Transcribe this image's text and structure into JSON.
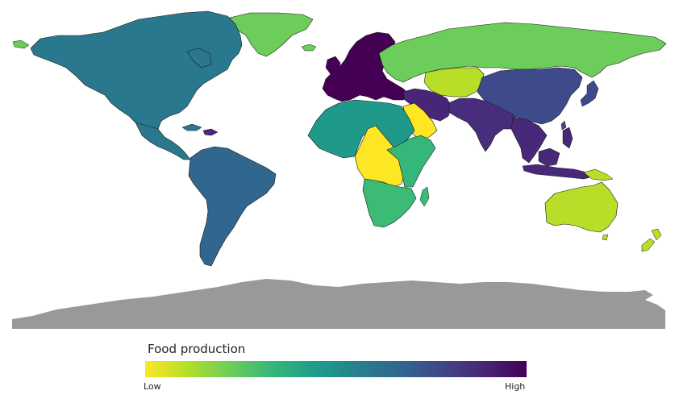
{
  "legend": {
    "title": "Food production",
    "low_label": "Low",
    "high_label": "High",
    "colorscale": [
      "#fde725",
      "#b5de2b",
      "#6ece58",
      "#35b779",
      "#1f9e89",
      "#26828e",
      "#31688e",
      "#3e4989",
      "#482878",
      "#440154"
    ]
  },
  "regions": [
    {
      "name": "North America",
      "color": "#2a788e"
    },
    {
      "name": "Central America and Caribbean",
      "color": "#2a788e"
    },
    {
      "name": "South America",
      "color": "#31668e"
    },
    {
      "name": "Western and Northern Europe",
      "color": "#440154"
    },
    {
      "name": "Russia",
      "color": "#6ccd5a"
    },
    {
      "name": "Central Asia",
      "color": "#b8de29"
    },
    {
      "name": "China and East Asia",
      "color": "#3e4a89"
    },
    {
      "name": "Middle East",
      "color": "#482677"
    },
    {
      "name": "South Asia",
      "color": "#472d7b"
    },
    {
      "name": "Southeast Asia",
      "color": "#482878"
    },
    {
      "name": "Arabian Peninsula",
      "color": "#fde725"
    },
    {
      "name": "North Africa",
      "color": "#1f9a8a"
    },
    {
      "name": "Central Africa",
      "color": "#fde725"
    },
    {
      "name": "East Africa",
      "color": "#35b779"
    },
    {
      "name": "Southern Africa",
      "color": "#3bbb75"
    },
    {
      "name": "Japan",
      "color": "#3e4a89"
    },
    {
      "name": "Australia",
      "color": "#b8de29"
    },
    {
      "name": "New Zealand",
      "color": "#b8de29"
    },
    {
      "name": "Papua New Guinea",
      "color": "#b8de29"
    },
    {
      "name": "Greenland",
      "color": "#6ccd5a"
    },
    {
      "name": "Antarctica",
      "color": "#999999"
    }
  ]
}
